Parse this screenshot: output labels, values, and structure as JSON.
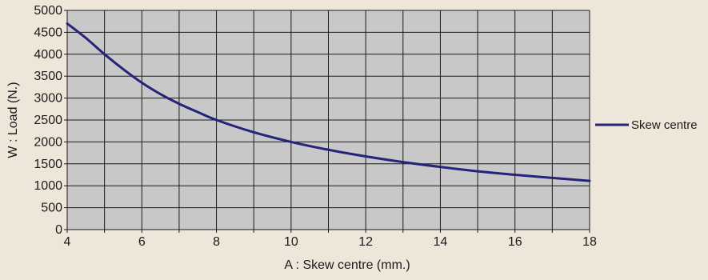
{
  "chart_data": {
    "type": "line",
    "title": "",
    "xlabel": "A : Skew centre (mm.)",
    "ylabel": "W : Load (N.)",
    "xlim": [
      4,
      18
    ],
    "ylim": [
      0,
      5000
    ],
    "x_ticks": [
      4,
      6,
      8,
      10,
      12,
      14,
      16,
      18
    ],
    "y_ticks": [
      0,
      500,
      1000,
      1500,
      2000,
      2500,
      3000,
      3500,
      4000,
      4500,
      5000
    ],
    "x_minor_step": 1,
    "grid": true,
    "legend_position": "right",
    "plot_background": "#c8c8c8",
    "page_background": "#efe6da",
    "series": [
      {
        "name": "Skew centre",
        "color": "#25237a",
        "x": [
          4,
          4.5,
          5,
          5.5,
          6,
          6.5,
          7,
          7.5,
          8,
          9,
          10,
          11,
          12,
          13,
          14,
          15,
          16,
          17,
          18
        ],
        "y": [
          4700,
          4370,
          4000,
          3660,
          3350,
          3090,
          2870,
          2680,
          2500,
          2220,
          2000,
          1820,
          1670,
          1540,
          1430,
          1330,
          1250,
          1180,
          1110
        ]
      }
    ]
  }
}
